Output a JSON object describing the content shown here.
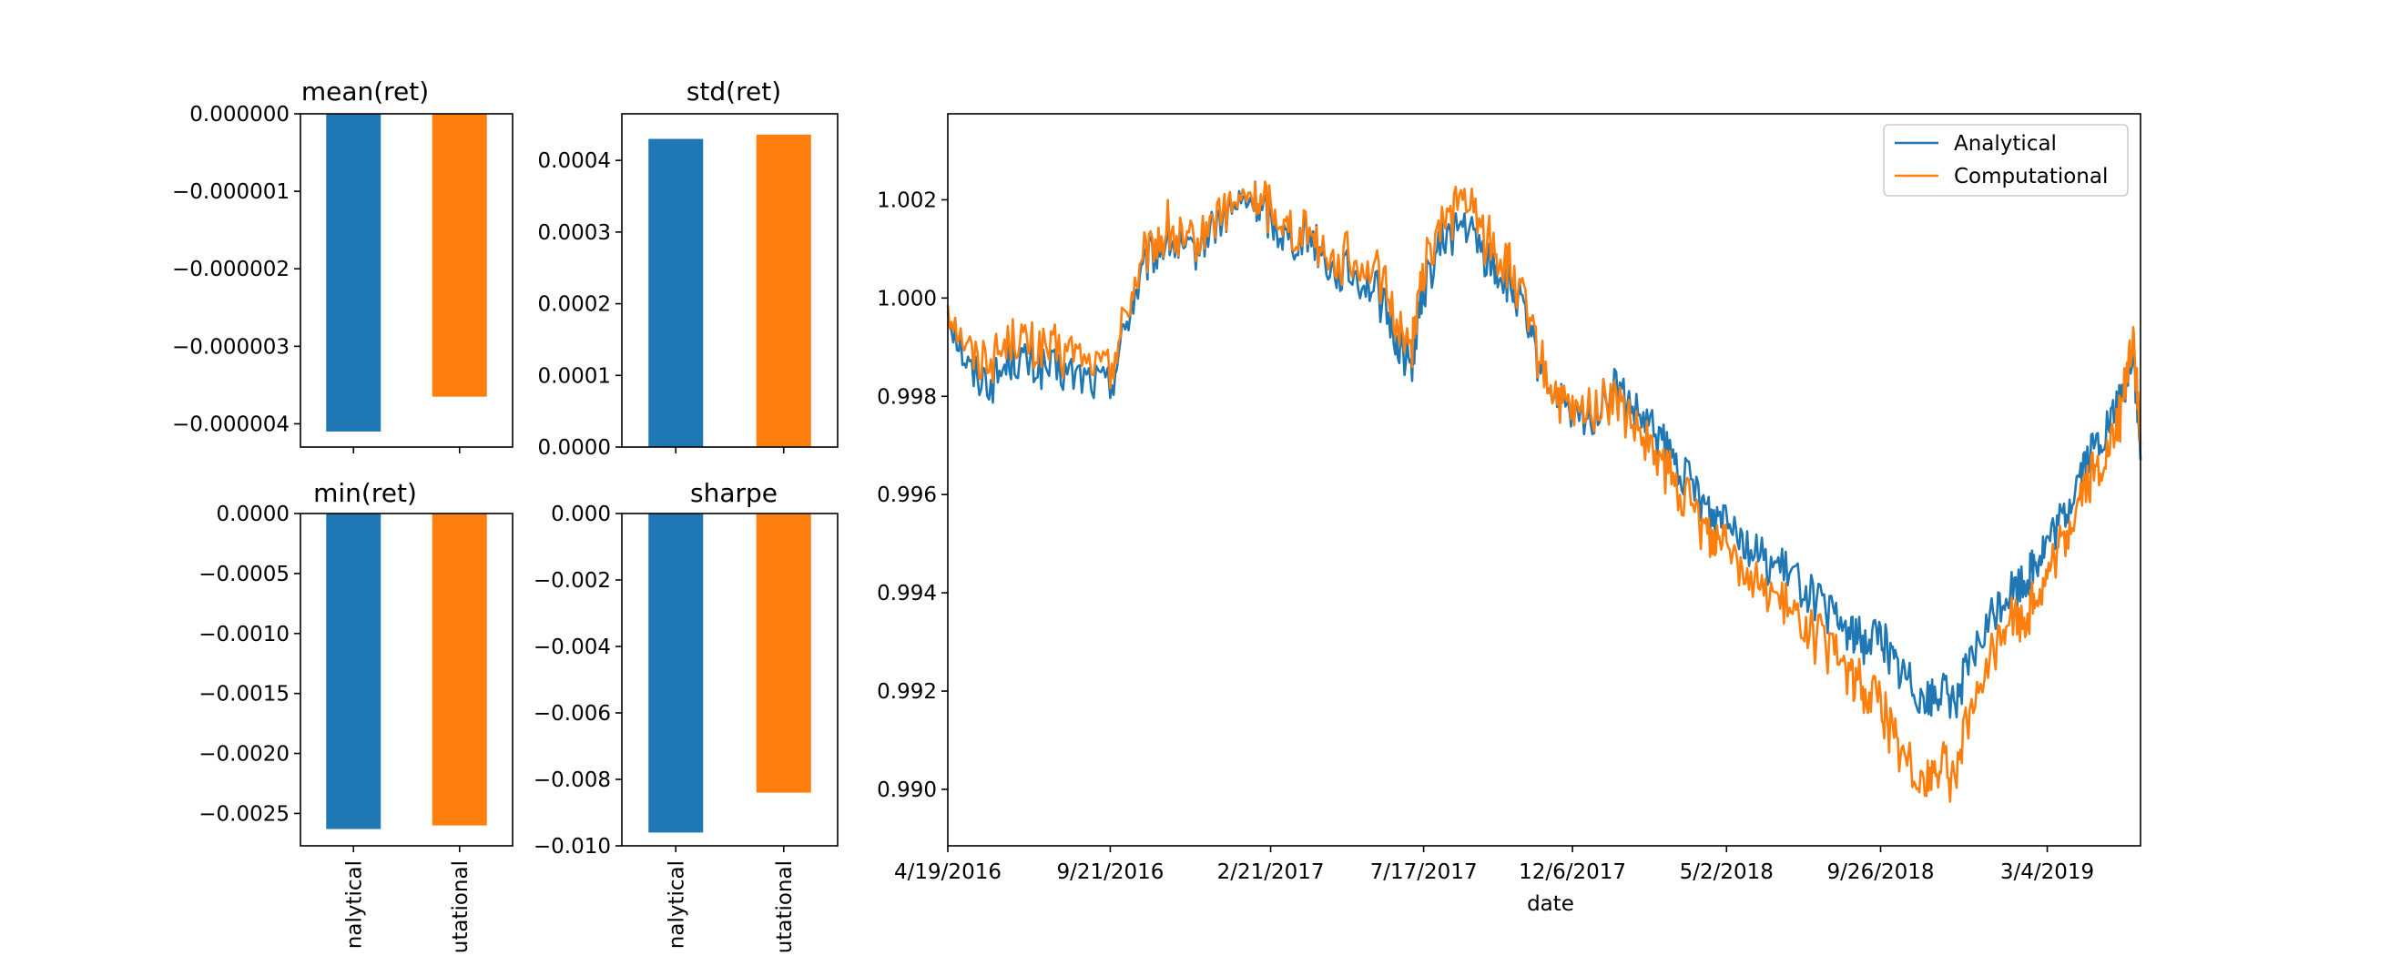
{
  "colors": {
    "analytical": "#1f77b4",
    "computational": "#ff7f0e"
  },
  "chart_data": [
    {
      "type": "bar",
      "title": "mean(ret)",
      "categories": [
        "Analytical",
        "Computational"
      ],
      "values": [
        -4.1e-06,
        -3.65e-06
      ],
      "ylim": [
        -4.3e-06,
        0.0
      ],
      "yticks": [
        0.0,
        -1e-06,
        -2e-06,
        -3e-06,
        -4e-06
      ],
      "ytick_labels": [
        "0.000000",
        "−0.000001",
        "−0.000002",
        "−0.000003",
        "−0.000004"
      ],
      "show_xtick_labels": false
    },
    {
      "type": "bar",
      "title": "std(ret)",
      "categories": [
        "Analytical",
        "Computational"
      ],
      "values": [
        0.00043,
        0.000436
      ],
      "ylim": [
        0.0,
        0.000465
      ],
      "yticks": [
        0.0,
        0.0001,
        0.0002,
        0.0003,
        0.0004
      ],
      "ytick_labels": [
        "0.0000",
        "0.0001",
        "0.0002",
        "0.0003",
        "0.0004"
      ],
      "show_xtick_labels": false
    },
    {
      "type": "bar",
      "title": "min(ret)",
      "categories": [
        "Analytical",
        "Computational"
      ],
      "values": [
        -0.00263,
        -0.0026
      ],
      "ylim": [
        -0.00277,
        0.0
      ],
      "yticks": [
        0.0,
        -0.0005,
        -0.001,
        -0.0015,
        -0.002,
        -0.0025
      ],
      "ytick_labels": [
        "0.0000",
        "−0.0005",
        "−0.0010",
        "−0.0015",
        "−0.0020",
        "−0.0025"
      ],
      "xtick_labels": [
        "nalytical",
        "utational"
      ],
      "show_xtick_labels": true
    },
    {
      "type": "bar",
      "title": "sharpe",
      "categories": [
        "Analytical",
        "Computational"
      ],
      "values": [
        -0.0096,
        -0.0084
      ],
      "ylim": [
        -0.01,
        0.0
      ],
      "yticks": [
        0.0,
        -0.002,
        -0.004,
        -0.006,
        -0.008,
        -0.01
      ],
      "ytick_labels": [
        "0.000",
        "−0.002",
        "−0.004",
        "−0.006",
        "−0.008",
        "−0.010"
      ],
      "xtick_labels": [
        "nalytical",
        "utational"
      ],
      "show_xtick_labels": true
    },
    {
      "type": "line",
      "xlabel": "date",
      "x_range": [
        "2016-04-19",
        "2019-06-01"
      ],
      "xtick_dates": [
        "2016-04-19",
        "2016-09-21",
        "2017-02-21",
        "2017-07-17",
        "2017-12-06",
        "2018-05-02",
        "2018-09-26",
        "2019-03-04"
      ],
      "xtick_labels": [
        "4/19/2016",
        "9/21/2016",
        "2/21/2017",
        "7/17/2017",
        "12/6/2017",
        "5/2/2018",
        "9/26/2018",
        "3/4/2019"
      ],
      "ylim": [
        0.98885,
        1.00375
      ],
      "yticks": [
        0.99,
        0.992,
        0.994,
        0.996,
        0.998,
        1.0,
        1.002
      ],
      "ytick_labels": [
        "0.990",
        "0.992",
        "0.994",
        "0.996",
        "0.998",
        "1.000",
        "1.002"
      ],
      "legend": "top-right",
      "series": [
        {
          "name": "Analytical",
          "x": [
            "2016-04-19",
            "2016-05-10",
            "2016-06-01",
            "2016-06-20",
            "2016-07-10",
            "2016-08-01",
            "2016-08-25",
            "2016-09-21",
            "2016-10-10",
            "2016-10-28",
            "2016-11-15",
            "2016-12-05",
            "2016-12-25",
            "2017-01-15",
            "2017-02-05",
            "2017-02-21",
            "2017-03-10",
            "2017-04-01",
            "2017-04-20",
            "2017-05-10",
            "2017-06-01",
            "2017-06-20",
            "2017-07-05",
            "2017-07-17",
            "2017-08-05",
            "2017-08-25",
            "2017-09-15",
            "2017-10-01",
            "2017-10-15",
            "2017-11-01",
            "2017-11-20",
            "2017-12-06",
            "2017-12-25",
            "2018-01-15",
            "2018-02-05",
            "2018-02-25",
            "2018-03-15",
            "2018-04-05",
            "2018-04-20",
            "2018-05-02",
            "2018-05-20",
            "2018-06-10",
            "2018-07-01",
            "2018-07-20",
            "2018-08-10",
            "2018-08-28",
            "2018-09-10",
            "2018-09-26",
            "2018-10-10",
            "2018-10-25",
            "2018-11-10",
            "2018-11-20",
            "2018-12-05",
            "2018-12-20",
            "2019-01-10",
            "2019-01-25",
            "2019-02-10",
            "2019-02-20",
            "2019-03-04",
            "2019-03-20",
            "2019-04-05",
            "2019-04-20",
            "2019-05-05",
            "2019-05-15",
            "2019-05-25",
            "2019-06-01"
          ],
          "y": [
            0.9998,
            0.9985,
            0.9983,
            0.9988,
            0.9986,
            0.9985,
            0.9984,
            0.9982,
            0.9998,
            1.0008,
            1.0012,
            1.0008,
            1.0014,
            1.0018,
            1.002,
            1.0016,
            1.0012,
            1.0013,
            1.0006,
            1.0005,
            1.0002,
            0.9992,
            0.9986,
            1.0002,
            1.0012,
            1.0015,
            1.0008,
            1.0004,
            1.0,
            0.9988,
            0.998,
            0.9975,
            0.9976,
            0.9982,
            0.9976,
            0.9972,
            0.9966,
            0.996,
            0.9955,
            0.9958,
            0.995,
            0.9946,
            0.9944,
            0.994,
            0.9935,
            0.9932,
            0.993,
            0.9932,
            0.9925,
            0.9922,
            0.9918,
            0.992,
            0.9918,
            0.9925,
            0.9935,
            0.994,
            0.9942,
            0.9946,
            0.995,
            0.9955,
            0.9965,
            0.997,
            0.9975,
            0.998,
            0.999,
            0.9967
          ]
        },
        {
          "name": "Computational",
          "x": [
            "2016-04-19",
            "2016-05-10",
            "2016-06-01",
            "2016-06-20",
            "2016-07-10",
            "2016-08-01",
            "2016-08-25",
            "2016-09-21",
            "2016-10-10",
            "2016-10-28",
            "2016-11-15",
            "2016-12-05",
            "2016-12-25",
            "2017-01-15",
            "2017-02-05",
            "2017-02-21",
            "2017-03-10",
            "2017-04-01",
            "2017-04-20",
            "2017-05-10",
            "2017-06-01",
            "2017-06-20",
            "2017-07-05",
            "2017-07-17",
            "2017-08-05",
            "2017-08-25",
            "2017-09-15",
            "2017-10-01",
            "2017-10-15",
            "2017-11-01",
            "2017-11-20",
            "2017-12-06",
            "2017-12-25",
            "2018-01-15",
            "2018-02-05",
            "2018-02-25",
            "2018-03-15",
            "2018-04-05",
            "2018-04-20",
            "2018-05-02",
            "2018-05-20",
            "2018-06-10",
            "2018-07-01",
            "2018-07-20",
            "2018-08-10",
            "2018-08-28",
            "2018-09-10",
            "2018-09-26",
            "2018-10-10",
            "2018-10-25",
            "2018-11-10",
            "2018-11-20",
            "2018-12-05",
            "2018-12-20",
            "2019-01-10",
            "2019-01-25",
            "2019-02-10",
            "2019-02-20",
            "2019-03-04",
            "2019-03-20",
            "2019-04-05",
            "2019-04-20",
            "2019-05-05",
            "2019-05-15",
            "2019-05-25",
            "2019-06-01"
          ],
          "y": [
            0.9999,
            0.9989,
            0.9987,
            0.9992,
            0.999,
            0.9989,
            0.9988,
            0.9985,
            1.0,
            1.001,
            1.0014,
            1.001,
            1.0015,
            1.0019,
            1.0021,
            1.0018,
            1.0014,
            1.0014,
            1.0008,
            1.0008,
            1.0006,
            0.9996,
            0.999,
            1.0006,
            1.0016,
            1.002,
            1.0012,
            1.0008,
            1.0002,
            0.999,
            0.998,
            0.9976,
            0.9977,
            0.998,
            0.9972,
            0.9968,
            0.9962,
            0.9956,
            0.995,
            0.9953,
            0.9944,
            0.994,
            0.9936,
            0.9932,
            0.9928,
            0.9924,
            0.992,
            0.9918,
            0.991,
            0.9905,
            0.9902,
            0.9905,
            0.9902,
            0.9914,
            0.9928,
            0.9935,
            0.9935,
            0.9938,
            0.9943,
            0.995,
            0.996,
            0.9965,
            0.997,
            0.9978,
            0.9993,
            0.997
          ]
        }
      ]
    }
  ]
}
